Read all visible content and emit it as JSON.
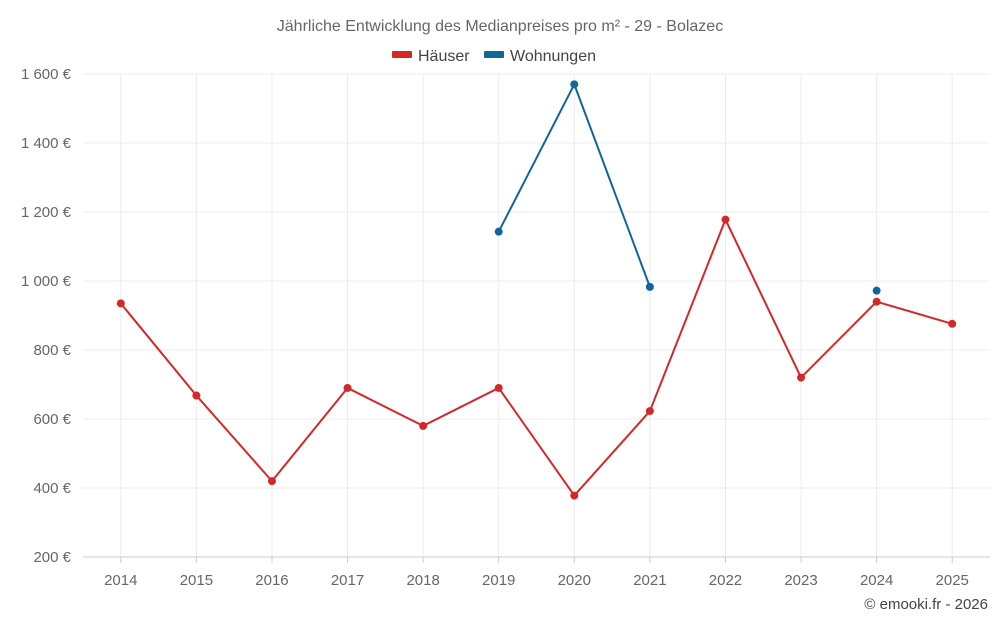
{
  "chart_data": {
    "type": "line",
    "title": "Jährliche Entwicklung des Medianpreises pro m² - 29 - Bolazec",
    "categories": [
      "2014",
      "2015",
      "2016",
      "2017",
      "2018",
      "2019",
      "2020",
      "2021",
      "2022",
      "2023",
      "2024",
      "2025"
    ],
    "y_ticks": [
      "200 €",
      "400 €",
      "600 €",
      "800 €",
      "1 000 €",
      "1 200 €",
      "1 400 €",
      "1 600 €"
    ],
    "ylim": [
      200,
      1600
    ],
    "grid": true,
    "legend_position": "top-center",
    "series": [
      {
        "name": "Häuser",
        "color": "#d62728",
        "values": [
          935,
          668,
          420,
          690,
          580,
          690,
          378,
          623,
          1178,
          720,
          940,
          876
        ]
      },
      {
        "name": "Wohnungen",
        "color": "#0e6699",
        "values": [
          null,
          null,
          null,
          null,
          null,
          1143,
          1570,
          983,
          null,
          null,
          972,
          null
        ]
      }
    ],
    "credit": "© emooki.fr - 2026"
  }
}
